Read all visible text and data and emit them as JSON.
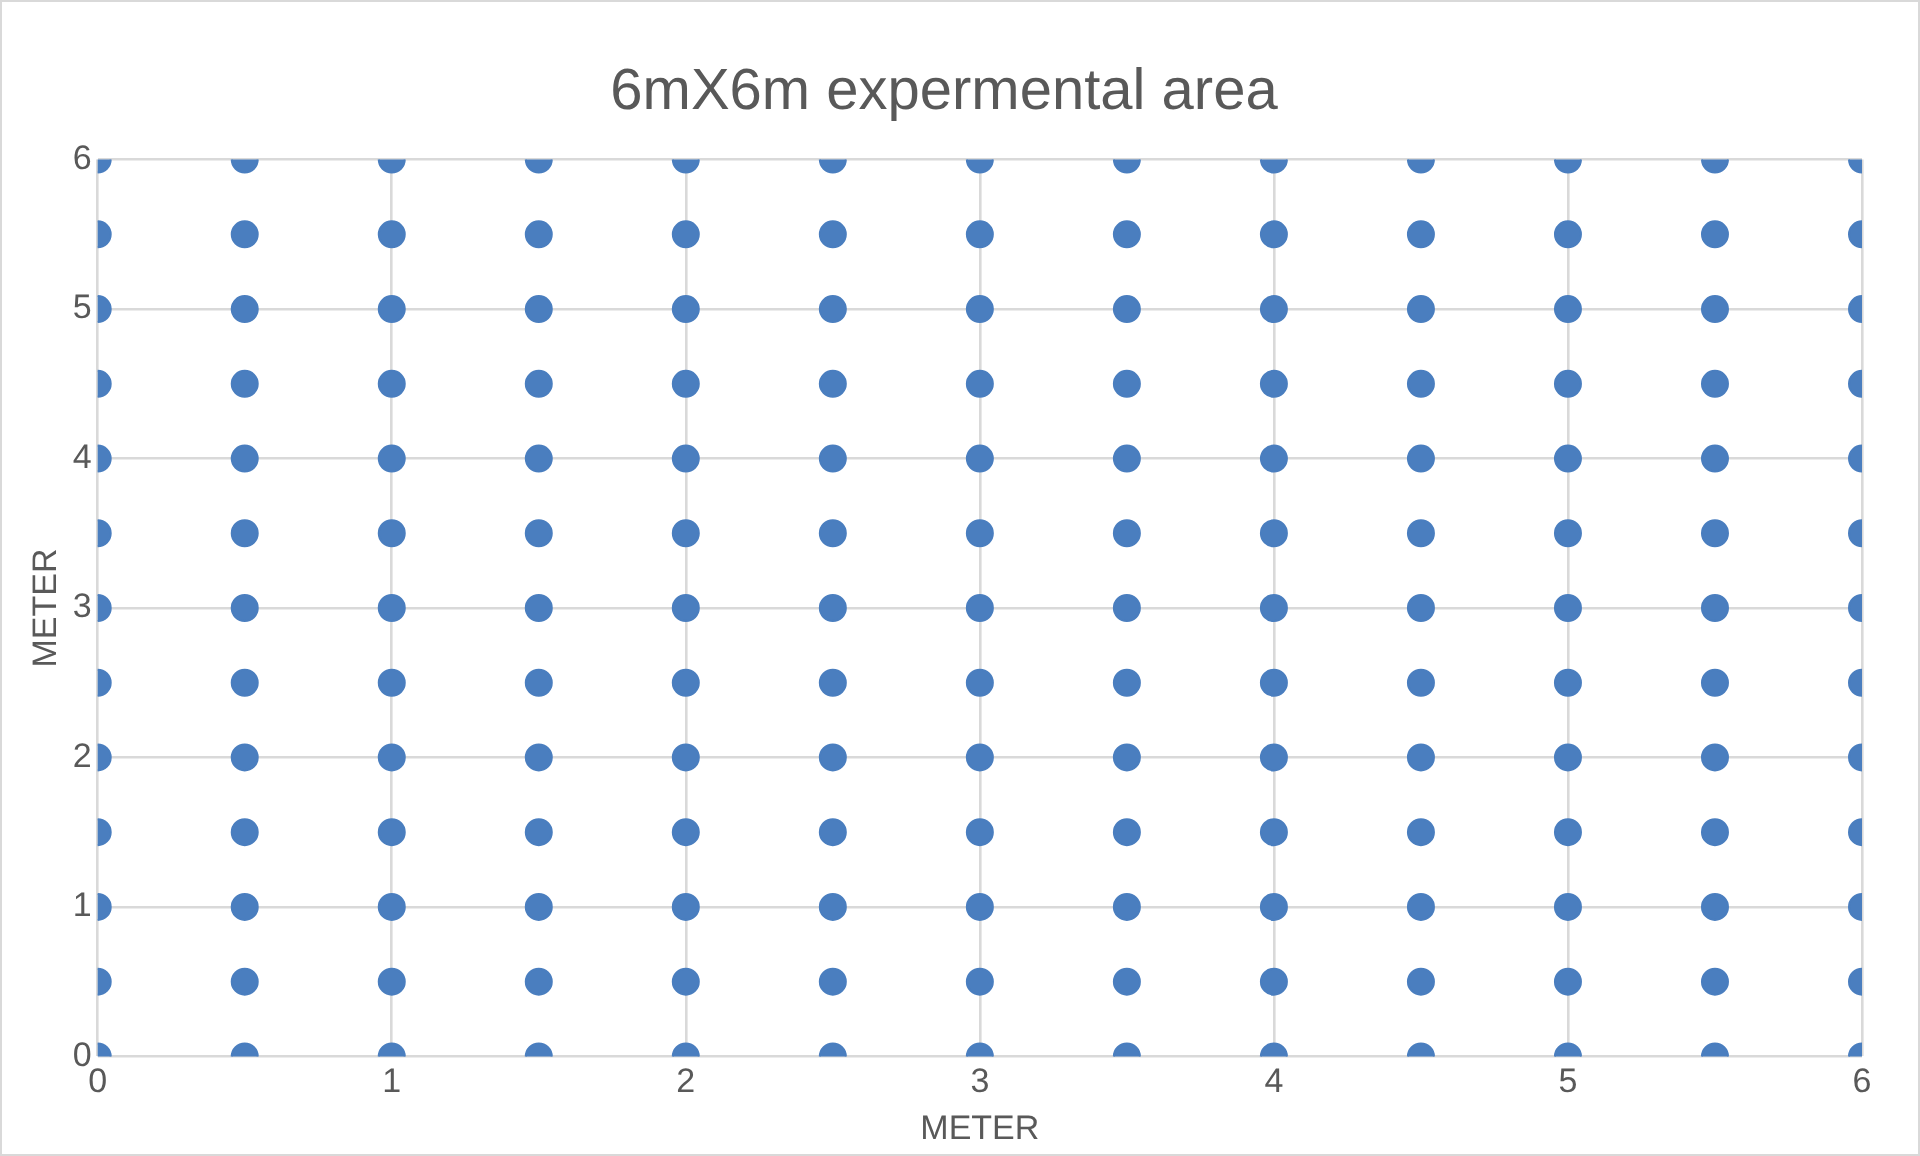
{
  "chart_data": {
    "type": "scatter",
    "title": "6mX6m expermental area",
    "xlabel": "METER",
    "ylabel": "METER",
    "xlim": [
      0,
      6
    ],
    "ylim": [
      0,
      6
    ],
    "xticks": [
      0,
      1,
      2,
      3,
      4,
      5,
      6
    ],
    "yticks": [
      0,
      1,
      2,
      3,
      4,
      5,
      6
    ],
    "grid": true,
    "legend": false,
    "marker": "circle",
    "series": [
      {
        "color": "#4a7ebf",
        "x": [
          0,
          0.5,
          1,
          1.5,
          2,
          2.5,
          3,
          3.5,
          4,
          4.5,
          5,
          5.5,
          6,
          0,
          0.5,
          1,
          1.5,
          2,
          2.5,
          3,
          3.5,
          4,
          4.5,
          5,
          5.5,
          6,
          0,
          0.5,
          1,
          1.5,
          2,
          2.5,
          3,
          3.5,
          4,
          4.5,
          5,
          5.5,
          6,
          0,
          0.5,
          1,
          1.5,
          2,
          2.5,
          3,
          3.5,
          4,
          4.5,
          5,
          5.5,
          6,
          0,
          0.5,
          1,
          1.5,
          2,
          2.5,
          3,
          3.5,
          4,
          4.5,
          5,
          5.5,
          6,
          0,
          0.5,
          1,
          1.5,
          2,
          2.5,
          3,
          3.5,
          4,
          4.5,
          5,
          5.5,
          6,
          0,
          0.5,
          1,
          1.5,
          2,
          2.5,
          3,
          3.5,
          4,
          4.5,
          5,
          5.5,
          6,
          0,
          0.5,
          1,
          1.5,
          2,
          2.5,
          3,
          3.5,
          4,
          4.5,
          5,
          5.5,
          6,
          0,
          0.5,
          1,
          1.5,
          2,
          2.5,
          3,
          3.5,
          4,
          4.5,
          5,
          5.5,
          6,
          0,
          0.5,
          1,
          1.5,
          2,
          2.5,
          3,
          3.5,
          4,
          4.5,
          5,
          5.5,
          6,
          0,
          0.5,
          1,
          1.5,
          2,
          2.5,
          3,
          3.5,
          4,
          4.5,
          5,
          5.5,
          6,
          0,
          0.5,
          1,
          1.5,
          2,
          2.5,
          3,
          3.5,
          4,
          4.5,
          5,
          5.5,
          6,
          0,
          0.5,
          1,
          1.5,
          2,
          2.5,
          3,
          3.5,
          4,
          4.5,
          5,
          5.5,
          6
        ],
        "values": [
          0,
          0,
          0,
          0,
          0,
          0,
          0,
          0,
          0,
          0,
          0,
          0,
          0,
          0.5,
          0.5,
          0.5,
          0.5,
          0.5,
          0.5,
          0.5,
          0.5,
          0.5,
          0.5,
          0.5,
          0.5,
          0.5,
          1,
          1,
          1,
          1,
          1,
          1,
          1,
          1,
          1,
          1,
          1,
          1,
          1,
          1.5,
          1.5,
          1.5,
          1.5,
          1.5,
          1.5,
          1.5,
          1.5,
          1.5,
          1.5,
          1.5,
          1.5,
          1.5,
          2,
          2,
          2,
          2,
          2,
          2,
          2,
          2,
          2,
          2,
          2,
          2,
          2,
          2.5,
          2.5,
          2.5,
          2.5,
          2.5,
          2.5,
          2.5,
          2.5,
          2.5,
          2.5,
          2.5,
          2.5,
          2.5,
          3,
          3,
          3,
          3,
          3,
          3,
          3,
          3,
          3,
          3,
          3,
          3,
          3,
          3.5,
          3.5,
          3.5,
          3.5,
          3.5,
          3.5,
          3.5,
          3.5,
          3.5,
          3.5,
          3.5,
          3.5,
          3.5,
          4,
          4,
          4,
          4,
          4,
          4,
          4,
          4,
          4,
          4,
          4,
          4,
          4,
          4.5,
          4.5,
          4.5,
          4.5,
          4.5,
          4.5,
          4.5,
          4.5,
          4.5,
          4.5,
          4.5,
          4.5,
          4.5,
          5,
          5,
          5,
          5,
          5,
          5,
          5,
          5,
          5,
          5,
          5,
          5,
          5,
          5.5,
          5.5,
          5.5,
          5.5,
          5.5,
          5.5,
          5.5,
          5.5,
          5.5,
          5.5,
          5.5,
          5.5,
          5.5,
          6,
          6,
          6,
          6,
          6,
          6,
          6,
          6,
          6,
          6,
          6,
          6,
          6
        ]
      }
    ]
  }
}
